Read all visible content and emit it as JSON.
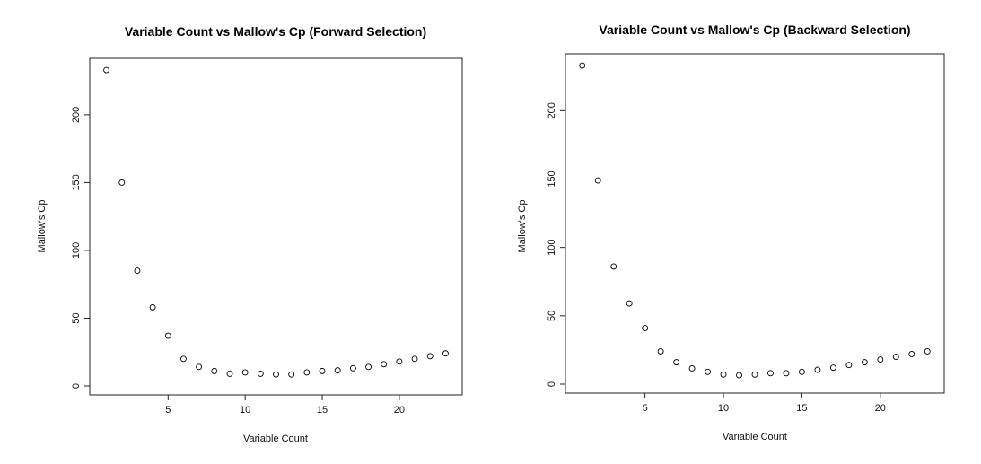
{
  "chart_data": [
    {
      "type": "scatter",
      "title": "Variable Count vs Mallow's Cp (Forward Selection)",
      "xlabel": "Variable Count",
      "ylabel": "Mallow's Cp",
      "x": [
        1,
        2,
        3,
        4,
        5,
        6,
        7,
        8,
        9,
        10,
        11,
        12,
        13,
        14,
        15,
        16,
        17,
        18,
        19,
        20,
        21,
        22,
        23
      ],
      "y": [
        233,
        150,
        85,
        58,
        37,
        20,
        14,
        11,
        9,
        10,
        9,
        8.5,
        8.5,
        10,
        11,
        11.5,
        13,
        14,
        16,
        18,
        20,
        22,
        24
      ],
      "xlim": [
        0.5,
        23.5
      ],
      "ylim": [
        0,
        235
      ],
      "xticks": [
        5,
        10,
        15,
        20
      ],
      "yticks": [
        0,
        50,
        100,
        150,
        200
      ],
      "grid": false
    },
    {
      "type": "scatter",
      "title": "Variable Count vs Mallow's Cp (Backward Selection)",
      "xlabel": "Variable Count",
      "ylabel": "Mallow's Cp",
      "x": [
        1,
        2,
        3,
        4,
        5,
        6,
        7,
        8,
        9,
        10,
        11,
        12,
        13,
        14,
        15,
        16,
        17,
        18,
        19,
        20,
        21,
        22,
        23
      ],
      "y": [
        233,
        149,
        86,
        59,
        41,
        24,
        16,
        11.5,
        9,
        7,
        6.5,
        7,
        8,
        8,
        9,
        10.5,
        12,
        14,
        16,
        18,
        20,
        22,
        24
      ],
      "xlim": [
        0.5,
        23.5
      ],
      "ylim": [
        0,
        235
      ],
      "xticks": [
        5,
        10,
        15,
        20
      ],
      "yticks": [
        0,
        50,
        100,
        150,
        200
      ],
      "grid": false
    }
  ]
}
